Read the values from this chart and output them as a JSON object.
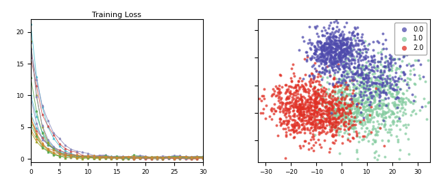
{
  "left_title": "Training Loss",
  "left_xlim": [
    0,
    30
  ],
  "left_ylim": [
    -0.5,
    22
  ],
  "left_xticks": [
    0,
    5,
    10,
    15,
    20,
    25,
    30
  ],
  "left_yticks": [
    0,
    5,
    10,
    15,
    20
  ],
  "num_curves": 15,
  "seed": 42,
  "right_xlim": [
    -33,
    35
  ],
  "right_ylim": [
    -28,
    24
  ],
  "right_xticks": [
    -30,
    -20,
    -10,
    0,
    10,
    20,
    30
  ],
  "class_colors": [
    "#4f4bad",
    "#85cca0",
    "#e03025"
  ],
  "class_labels": [
    "0.0",
    "1.0",
    "2.0"
  ],
  "n_points_per_class": 900,
  "scatter_seed": 77,
  "background_color": "#ffffff",
  "curve_colors": [
    "#4cbccc",
    "#4cbccc",
    "#4cbccc",
    "#a0a020",
    "#a0a020",
    "#a0a020",
    "#cc5555",
    "#cc5555",
    "#8888bb",
    "#8888bb",
    "#8888bb",
    "#55aa55",
    "#55aa55",
    "#cc8833",
    "#cc8833"
  ],
  "marker_every": 12
}
